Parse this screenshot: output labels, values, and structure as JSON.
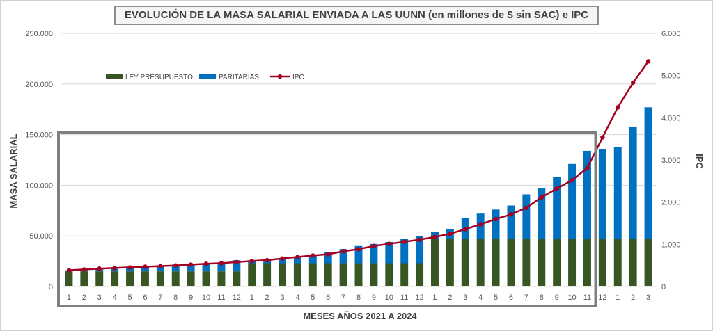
{
  "chart_data": {
    "type": "bar",
    "title": "EVOLUCIÓN DE LA MASA SALARIAL ENVIADA A LAS UUNN (en millones de $ sin SAC) e IPC",
    "xlabel": "MESES AÑOS 2021 A 2024",
    "ylabel": "MASA SALARIAL",
    "y2label": "IPC",
    "ylim": [
      0,
      250000
    ],
    "y2lim": [
      0,
      6000
    ],
    "yticks": [
      "0",
      "50.000",
      "100.000",
      "150.000",
      "200.000",
      "250.000"
    ],
    "y2ticks": [
      "0",
      "1.000",
      "2.000",
      "3.000",
      "4.000",
      "5.000",
      "6.000"
    ],
    "grid": true,
    "stacked": true,
    "legend_position": "top-left",
    "categories": [
      "1",
      "2",
      "3",
      "4",
      "5",
      "6",
      "7",
      "8",
      "9",
      "10",
      "11",
      "12",
      "1",
      "2",
      "3",
      "4",
      "5",
      "6",
      "7",
      "8",
      "9",
      "10",
      "11",
      "12",
      "1",
      "2",
      "3",
      "4",
      "5",
      "6",
      "7",
      "8",
      "9",
      "10",
      "11",
      "12",
      "1",
      "2",
      "3"
    ],
    "series": [
      {
        "name": "LEY PRESUPUESTO",
        "type": "bar",
        "color": "#375623",
        "values": [
          15000,
          15000,
          15000,
          15000,
          15000,
          15000,
          15000,
          15000,
          15000,
          15000,
          15000,
          15000,
          23000,
          23000,
          23000,
          23000,
          23000,
          23000,
          23000,
          23000,
          23000,
          23000,
          23000,
          23000,
          47000,
          47000,
          47000,
          47000,
          47000,
          47000,
          47000,
          47000,
          47000,
          47000,
          47000,
          47000,
          47000,
          47000,
          47000
        ]
      },
      {
        "name": "PARITARIAS",
        "type": "bar",
        "color": "#0070C0",
        "values": [
          1000,
          1500,
          2000,
          2500,
          3000,
          4000,
          5000,
          5500,
          6000,
          7000,
          8000,
          11000,
          2000,
          3000,
          4000,
          6000,
          8000,
          11000,
          14000,
          17000,
          19000,
          21000,
          24000,
          27000,
          7000,
          10000,
          21000,
          25000,
          29000,
          33000,
          44000,
          50000,
          61000,
          74000,
          87000,
          89000,
          91000,
          111000,
          130000
        ]
      },
      {
        "name": "IPC",
        "type": "line",
        "color": "#A50021",
        "axis": "secondary",
        "values": [
          385,
          405,
          425,
          440,
          455,
          470,
          485,
          500,
          520,
          540,
          555,
          580,
          605,
          625,
          665,
          700,
          735,
          765,
          835,
          885,
          960,
          1010,
          1060,
          1110,
          1175,
          1250,
          1360,
          1475,
          1600,
          1710,
          1865,
          2115,
          2320,
          2520,
          2810,
          3535,
          4245,
          4830,
          5335
        ]
      }
    ],
    "annotations": [
      {
        "type": "highlight-box",
        "note": "rectangle around months 1-2021 to 11-2023"
      }
    ]
  }
}
